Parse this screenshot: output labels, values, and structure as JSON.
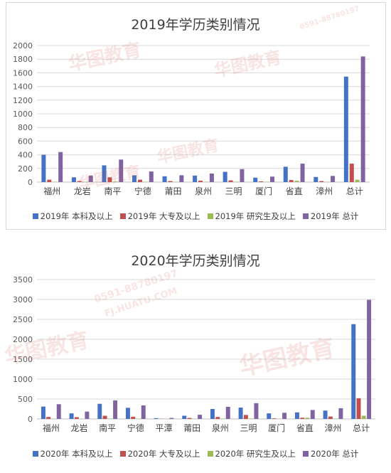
{
  "watermark": {
    "brand": "华图教育",
    "phone": "0591-88780197",
    "site": "FJ.HUATU.COM"
  },
  "chart_data": [
    {
      "type": "bar",
      "title": "2019年学历类别情况",
      "categories": [
        "福州",
        "龙岩",
        "南平",
        "宁德",
        "莆田",
        "泉州",
        "三明",
        "厦门",
        "省直",
        "漳州",
        "总计"
      ],
      "ylim": [
        0,
        2000
      ],
      "yticks": [
        0,
        200,
        400,
        600,
        800,
        1000,
        1200,
        1400,
        1600,
        1800,
        2000
      ],
      "grid": true,
      "legend_position": "bottom",
      "series": [
        {
          "name": "2019年 本科及以上",
          "color": "#4472c4",
          "values": [
            400,
            70,
            245,
            100,
            85,
            95,
            150,
            65,
            225,
            75,
            1545
          ]
        },
        {
          "name": "2019年 大专及以上",
          "color": "#c0504d",
          "values": [
            35,
            15,
            70,
            35,
            15,
            20,
            25,
            10,
            30,
            15,
            270
          ]
        },
        {
          "name": "2019年 研究生及以上",
          "color": "#9bbb59",
          "values": [
            5,
            3,
            8,
            5,
            3,
            5,
            5,
            5,
            20,
            3,
            35
          ]
        },
        {
          "name": "2019年 总计",
          "color": "#8064a2",
          "values": [
            440,
            95,
            330,
            155,
            100,
            125,
            190,
            80,
            270,
            90,
            1840
          ]
        }
      ]
    },
    {
      "type": "bar",
      "title": "2020年学历类别情况",
      "categories": [
        "福州",
        "龙岩",
        "南平",
        "宁德",
        "平潭",
        "莆田",
        "泉州",
        "三明",
        "厦门",
        "省直",
        "漳州",
        "总计"
      ],
      "ylim": [
        0,
        3500
      ],
      "yticks": [
        0,
        500,
        1000,
        1500,
        2000,
        2500,
        3000,
        3500
      ],
      "grid": true,
      "legend_position": "bottom",
      "series": [
        {
          "name": "2020年 本科及以上",
          "color": "#4472c4",
          "values": [
            310,
            140,
            380,
            280,
            20,
            80,
            250,
            285,
            140,
            165,
            210,
            2380
          ]
        },
        {
          "name": "2020年 大专及以上",
          "color": "#c0504d",
          "values": [
            50,
            45,
            80,
            55,
            5,
            25,
            50,
            100,
            15,
            30,
            60,
            520
          ]
        },
        {
          "name": "2020年 研究生及以上",
          "color": "#9bbb59",
          "values": [
            5,
            3,
            10,
            5,
            2,
            3,
            10,
            10,
            5,
            30,
            5,
            80
          ]
        },
        {
          "name": "2020年 总计",
          "color": "#8064a2",
          "values": [
            370,
            185,
            465,
            340,
            25,
            105,
            305,
            395,
            155,
            225,
            270,
            2990
          ]
        }
      ]
    }
  ]
}
